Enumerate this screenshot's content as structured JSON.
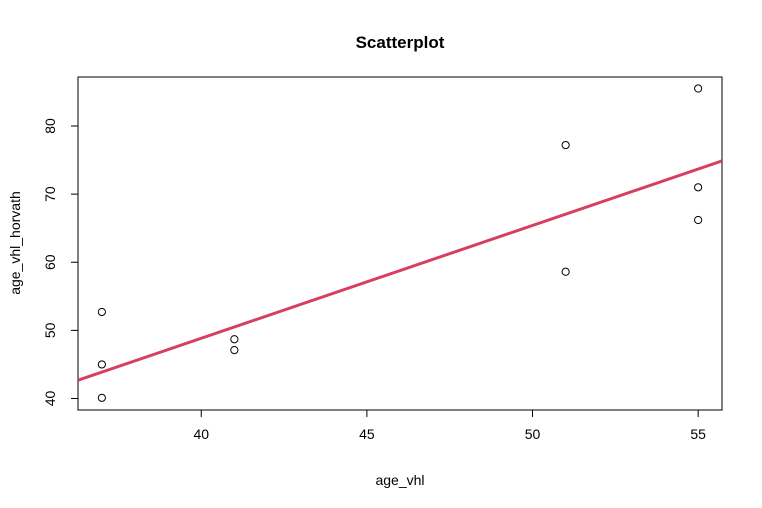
{
  "chart_data": {
    "type": "scatter",
    "title": "Scatterplot",
    "xlabel": "age_vhl",
    "ylabel": "age_vhl_horvath",
    "xlim": [
      36.28,
      55.72
    ],
    "ylim": [
      38.31,
      87.19
    ],
    "x_ticks": [
      40,
      45,
      50,
      55
    ],
    "y_ticks": [
      40,
      50,
      60,
      70,
      80
    ],
    "points": [
      {
        "x": 37,
        "y": 52.7
      },
      {
        "x": 37,
        "y": 45.0
      },
      {
        "x": 37,
        "y": 40.1
      },
      {
        "x": 41,
        "y": 48.7
      },
      {
        "x": 41,
        "y": 47.1
      },
      {
        "x": 51,
        "y": 77.2
      },
      {
        "x": 51,
        "y": 58.6
      },
      {
        "x": 55,
        "y": 85.5
      },
      {
        "x": 55,
        "y": 71.0
      },
      {
        "x": 55,
        "y": 66.2
      }
    ],
    "regression_line": {
      "intercept": -17.4,
      "slope": 1.656,
      "color": "#d6405e"
    },
    "point_color": "#000000",
    "grid": false
  }
}
